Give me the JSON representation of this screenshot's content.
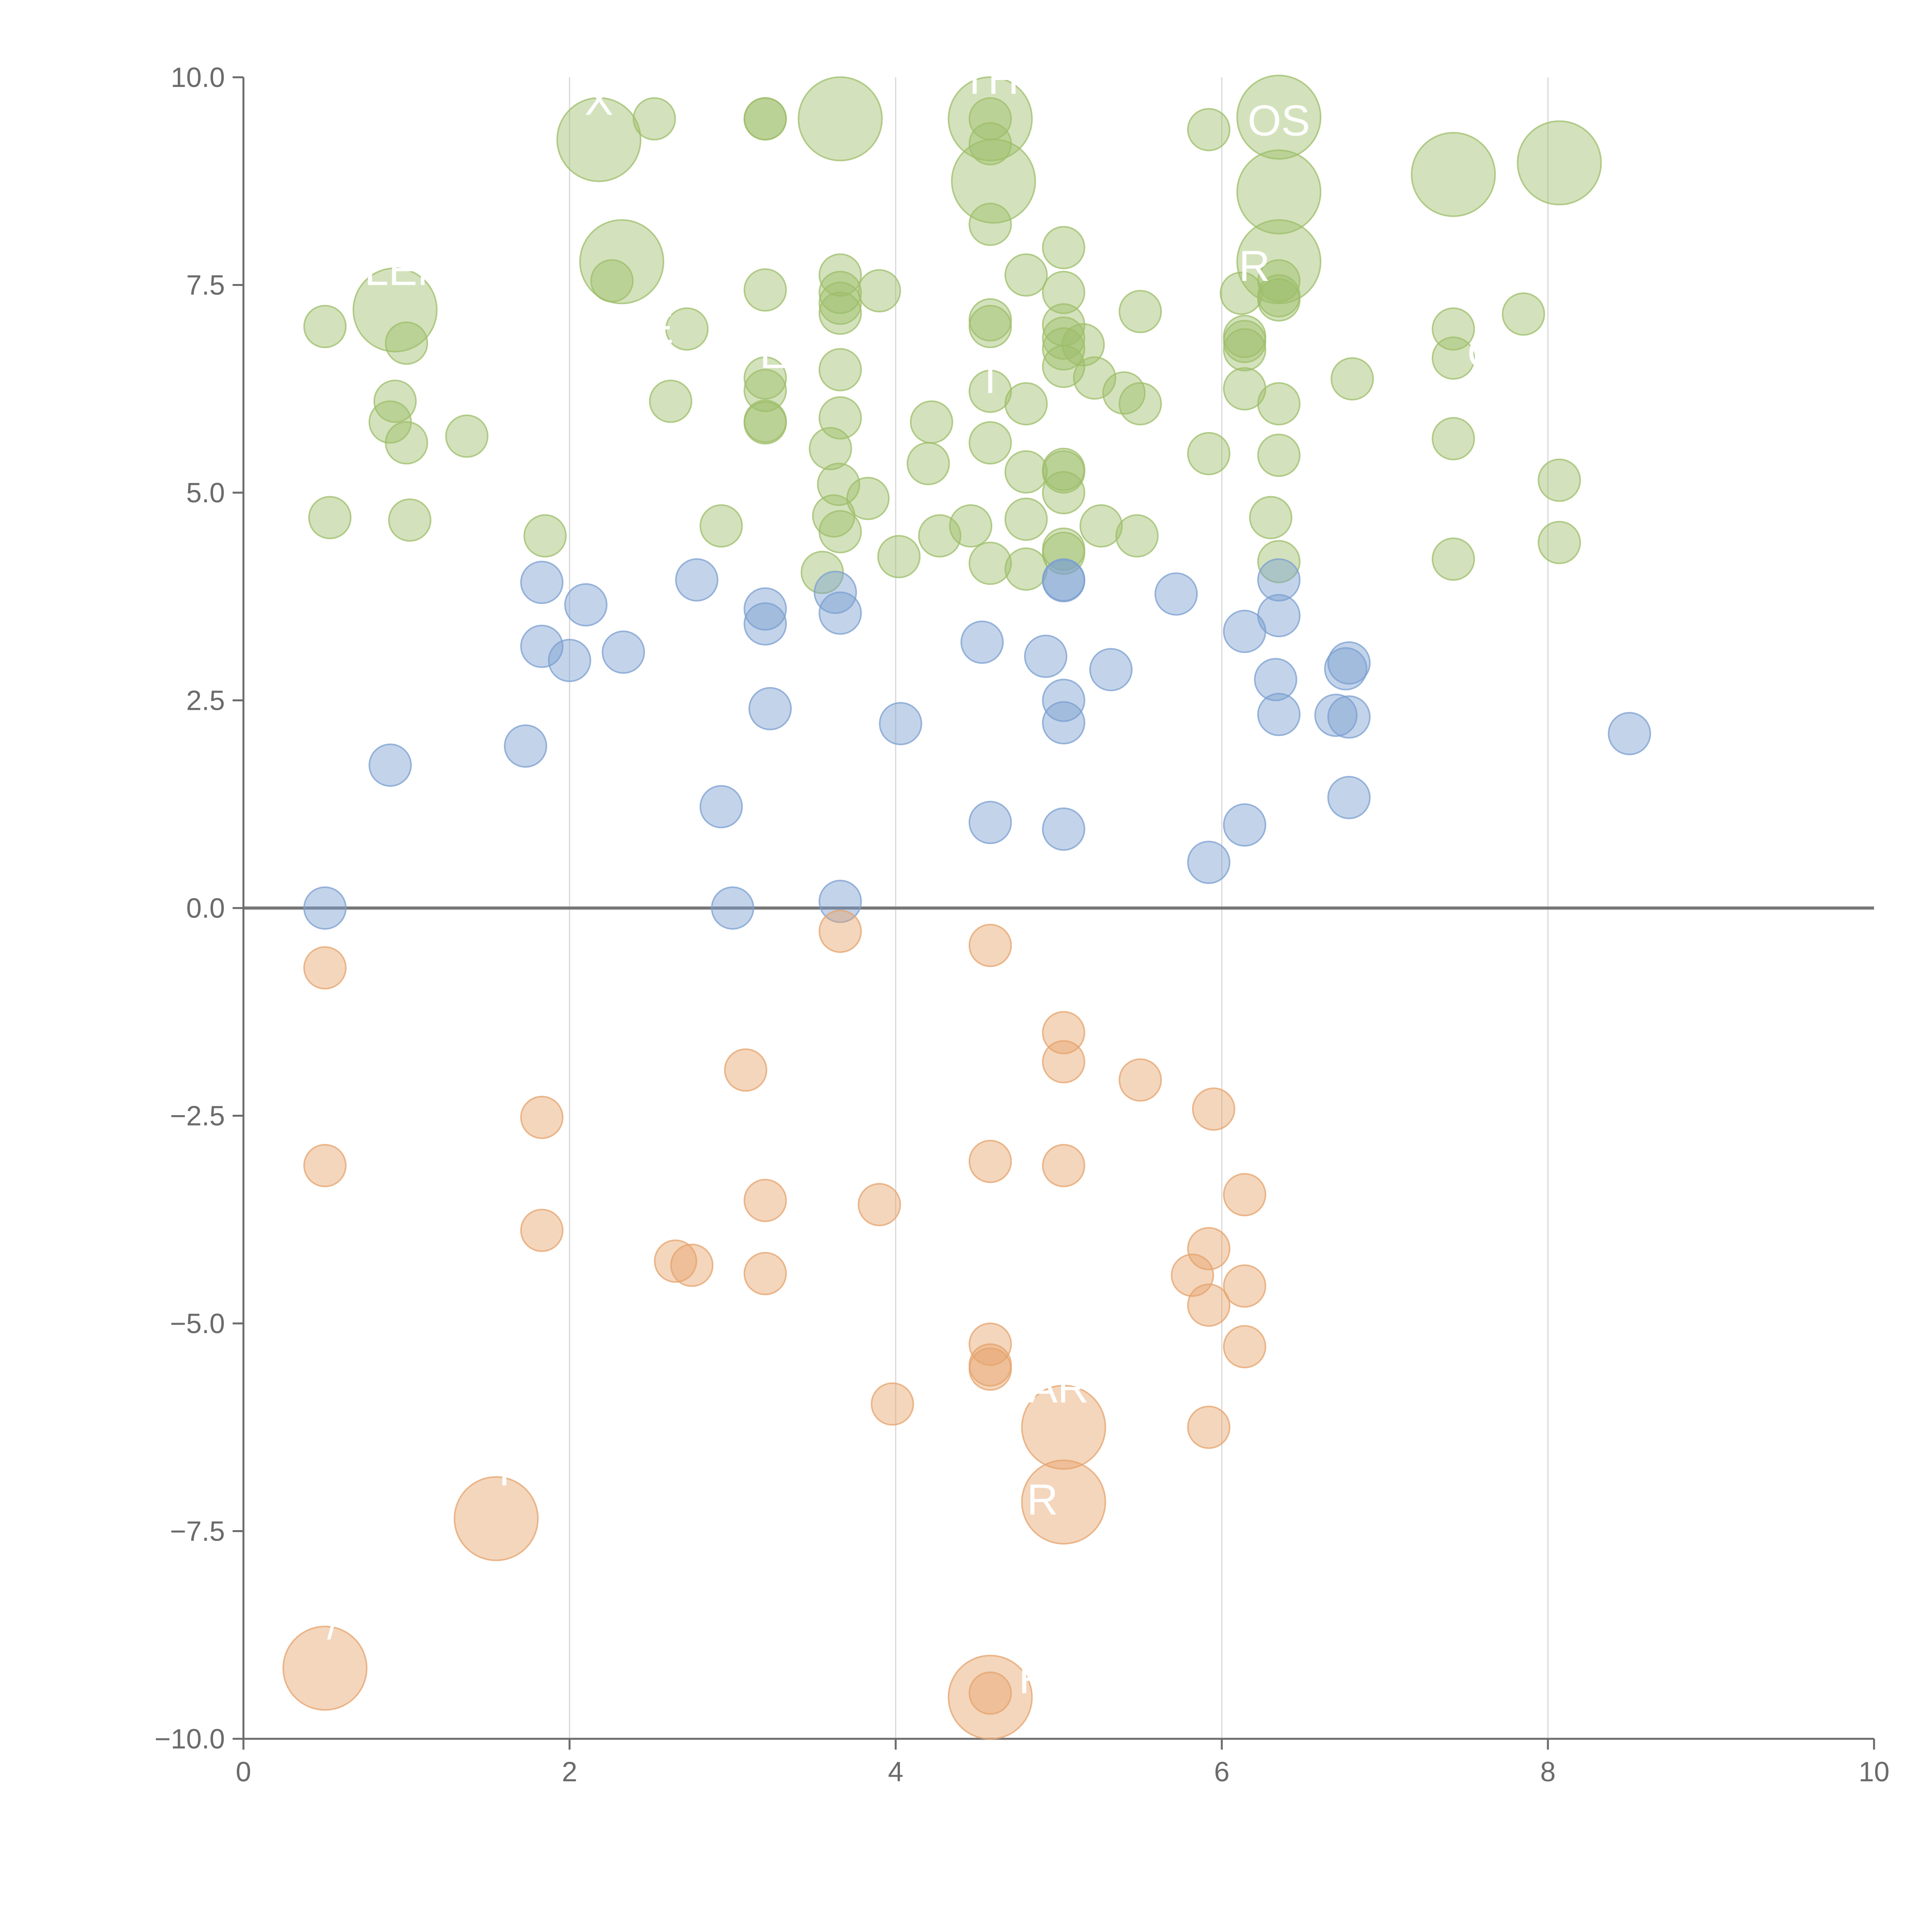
{
  "chart_data": {
    "type": "scatter",
    "title": "",
    "xlabel": "",
    "ylabel": "",
    "xlim": [
      0,
      10
    ],
    "ylim": [
      -10,
      10
    ],
    "grid": "vertical-lines",
    "x_ticks": [
      "0",
      "2",
      "4",
      "6",
      "8",
      "10"
    ],
    "y_ticks": [
      "−10.0",
      "−7.5",
      "−5.0",
      "−2.5",
      "0.0",
      "2.5",
      "5.0",
      "7.5",
      "10.0"
    ],
    "colors": {
      "green": "#9dbe6a",
      "blue": "#7b9fd0",
      "orange": "#e6a36c",
      "axis": "#6b6b6b",
      "grid": "#d7d7d7",
      "zero_line": "#777777"
    },
    "series": [
      {
        "name": "green",
        "color": "#9dbe6a",
        "points": [
          {
            "x": 0.5,
            "y": 7.0,
            "s": 1
          },
          {
            "x": 0.53,
            "y": 4.7,
            "s": 1
          },
          {
            "x": 0.9,
            "y": 5.85,
            "s": 1
          },
          {
            "x": 0.93,
            "y": 6.1,
            "s": 1
          },
          {
            "x": 1.0,
            "y": 5.6,
            "s": 1
          },
          {
            "x": 1.0,
            "y": 6.8,
            "s": 1
          },
          {
            "x": 1.02,
            "y": 4.67,
            "s": 1
          },
          {
            "x": 1.37,
            "y": 5.68,
            "s": 1
          },
          {
            "x": 1.85,
            "y": 4.48,
            "s": 1
          },
          {
            "x": 2.26,
            "y": 7.55,
            "s": 1
          },
          {
            "x": 2.52,
            "y": 9.5,
            "s": 1
          },
          {
            "x": 2.62,
            "y": 6.1,
            "s": 1
          },
          {
            "x": 2.72,
            "y": 6.97,
            "s": 1
          },
          {
            "x": 2.93,
            "y": 4.6,
            "s": 1
          },
          {
            "x": 3.2,
            "y": 9.5,
            "s": 1
          },
          {
            "x": 3.2,
            "y": 9.5,
            "s": 1
          },
          {
            "x": 3.2,
            "y": 7.44,
            "s": 1
          },
          {
            "x": 3.2,
            "y": 6.38,
            "s": 1
          },
          {
            "x": 3.2,
            "y": 6.23,
            "s": 1
          },
          {
            "x": 3.2,
            "y": 5.86,
            "s": 1
          },
          {
            "x": 3.2,
            "y": 5.84,
            "s": 1
          },
          {
            "x": 3.55,
            "y": 4.04,
            "s": 1
          },
          {
            "x": 3.6,
            "y": 5.53,
            "s": 1
          },
          {
            "x": 3.62,
            "y": 4.72,
            "s": 1
          },
          {
            "x": 3.65,
            "y": 5.1,
            "s": 1
          },
          {
            "x": 3.66,
            "y": 7.62,
            "s": 1
          },
          {
            "x": 3.66,
            "y": 7.41,
            "s": 1
          },
          {
            "x": 3.66,
            "y": 7.28,
            "s": 1
          },
          {
            "x": 3.66,
            "y": 7.16,
            "s": 1
          },
          {
            "x": 3.66,
            "y": 6.48,
            "s": 1
          },
          {
            "x": 3.66,
            "y": 5.9,
            "s": 1
          },
          {
            "x": 3.66,
            "y": 4.53,
            "s": 1
          },
          {
            "x": 3.83,
            "y": 4.93,
            "s": 1
          },
          {
            "x": 3.9,
            "y": 7.43,
            "s": 1
          },
          {
            "x": 4.02,
            "y": 4.23,
            "s": 1
          },
          {
            "x": 4.2,
            "y": 5.35,
            "s": 1
          },
          {
            "x": 4.22,
            "y": 5.85,
            "s": 1
          },
          {
            "x": 4.27,
            "y": 4.48,
            "s": 1
          },
          {
            "x": 4.46,
            "y": 4.6,
            "s": 1
          },
          {
            "x": 4.58,
            "y": 9.5,
            "s": 1
          },
          {
            "x": 4.58,
            "y": 9.2,
            "s": 1
          },
          {
            "x": 4.58,
            "y": 8.23,
            "s": 1
          },
          {
            "x": 4.58,
            "y": 7.08,
            "s": 1
          },
          {
            "x": 4.58,
            "y": 7.0,
            "s": 1
          },
          {
            "x": 4.58,
            "y": 6.22,
            "s": 1
          },
          {
            "x": 4.58,
            "y": 5.6,
            "s": 1
          },
          {
            "x": 4.58,
            "y": 4.15,
            "s": 1
          },
          {
            "x": 4.8,
            "y": 7.62,
            "s": 1
          },
          {
            "x": 4.8,
            "y": 6.07,
            "s": 1
          },
          {
            "x": 4.8,
            "y": 5.25,
            "s": 1
          },
          {
            "x": 4.8,
            "y": 4.68,
            "s": 1
          },
          {
            "x": 4.8,
            "y": 4.08,
            "s": 1
          },
          {
            "x": 5.03,
            "y": 7.95,
            "s": 1
          },
          {
            "x": 5.03,
            "y": 7.41,
            "s": 1
          },
          {
            "x": 5.03,
            "y": 7.02,
            "s": 1
          },
          {
            "x": 5.03,
            "y": 6.86,
            "s": 1
          },
          {
            "x": 5.03,
            "y": 6.73,
            "s": 1
          },
          {
            "x": 5.03,
            "y": 6.52,
            "s": 1
          },
          {
            "x": 5.03,
            "y": 5.28,
            "s": 1
          },
          {
            "x": 5.03,
            "y": 5.25,
            "s": 1
          },
          {
            "x": 5.03,
            "y": 5.0,
            "s": 1
          },
          {
            "x": 5.03,
            "y": 4.32,
            "s": 1
          },
          {
            "x": 5.03,
            "y": 4.27,
            "s": 1
          },
          {
            "x": 5.15,
            "y": 6.78,
            "s": 1
          },
          {
            "x": 5.22,
            "y": 6.38,
            "s": 1
          },
          {
            "x": 5.26,
            "y": 4.6,
            "s": 1
          },
          {
            "x": 5.4,
            "y": 6.2,
            "s": 1
          },
          {
            "x": 5.5,
            "y": 7.18,
            "s": 1
          },
          {
            "x": 5.5,
            "y": 6.07,
            "s": 1
          },
          {
            "x": 5.48,
            "y": 4.48,
            "s": 1
          },
          {
            "x": 5.92,
            "y": 9.37,
            "s": 1
          },
          {
            "x": 5.92,
            "y": 5.47,
            "s": 1
          },
          {
            "x": 6.12,
            "y": 7.4,
            "s": 1
          },
          {
            "x": 6.14,
            "y": 6.88,
            "s": 1
          },
          {
            "x": 6.14,
            "y": 6.82,
            "s": 1
          },
          {
            "x": 6.14,
            "y": 6.72,
            "s": 1
          },
          {
            "x": 6.14,
            "y": 6.25,
            "s": 1
          },
          {
            "x": 6.3,
            "y": 4.7,
            "s": 1
          },
          {
            "x": 6.35,
            "y": 7.55,
            "s": 1
          },
          {
            "x": 6.35,
            "y": 7.37,
            "s": 1
          },
          {
            "x": 6.35,
            "y": 7.32,
            "s": 1
          },
          {
            "x": 6.35,
            "y": 6.07,
            "s": 1
          },
          {
            "x": 6.35,
            "y": 5.45,
            "s": 1
          },
          {
            "x": 6.35,
            "y": 4.17,
            "s": 1
          },
          {
            "x": 6.8,
            "y": 6.37,
            "s": 1
          },
          {
            "x": 7.42,
            "y": 6.97,
            "s": 1
          },
          {
            "x": 7.42,
            "y": 6.62,
            "s": 1
          },
          {
            "x": 7.42,
            "y": 5.65,
            "s": 1
          },
          {
            "x": 7.42,
            "y": 4.2,
            "s": 1
          },
          {
            "x": 7.85,
            "y": 7.15,
            "s": 1
          },
          {
            "x": 8.07,
            "y": 5.15,
            "s": 1
          },
          {
            "x": 8.07,
            "y": 4.4,
            "s": 1
          },
          {
            "x": 0.93,
            "y": 7.2,
            "s": 3
          },
          {
            "x": 2.18,
            "y": 9.25,
            "s": 3
          },
          {
            "x": 2.32,
            "y": 7.78,
            "s": 3
          },
          {
            "x": 3.66,
            "y": 9.5,
            "s": 3
          },
          {
            "x": 4.58,
            "y": 9.5,
            "s": 3
          },
          {
            "x": 4.6,
            "y": 8.75,
            "s": 3
          },
          {
            "x": 6.35,
            "y": 9.52,
            "s": 3
          },
          {
            "x": 6.35,
            "y": 8.62,
            "s": 3
          },
          {
            "x": 6.35,
            "y": 7.78,
            "s": 3
          },
          {
            "x": 7.42,
            "y": 8.83,
            "s": 3
          },
          {
            "x": 8.07,
            "y": 8.97,
            "s": 3
          }
        ]
      },
      {
        "name": "blue",
        "color": "#7b9fd0",
        "points": [
          {
            "x": 0.5,
            "y": 0.0,
            "s": 1
          },
          {
            "x": 0.9,
            "y": 1.72,
            "s": 1
          },
          {
            "x": 1.73,
            "y": 1.95,
            "s": 1
          },
          {
            "x": 1.83,
            "y": 3.92,
            "s": 1
          },
          {
            "x": 1.83,
            "y": 3.15,
            "s": 1
          },
          {
            "x": 2.0,
            "y": 2.98,
            "s": 1
          },
          {
            "x": 2.1,
            "y": 3.65,
            "s": 1
          },
          {
            "x": 2.33,
            "y": 3.08,
            "s": 1
          },
          {
            "x": 2.78,
            "y": 3.95,
            "s": 1
          },
          {
            "x": 2.93,
            "y": 1.22,
            "s": 1
          },
          {
            "x": 3.0,
            "y": 0.0,
            "s": 1
          },
          {
            "x": 3.2,
            "y": 3.6,
            "s": 1
          },
          {
            "x": 3.2,
            "y": 3.42,
            "s": 1
          },
          {
            "x": 3.23,
            "y": 2.4,
            "s": 1
          },
          {
            "x": 3.63,
            "y": 3.8,
            "s": 1
          },
          {
            "x": 3.66,
            "y": 3.55,
            "s": 1
          },
          {
            "x": 3.66,
            "y": 0.08,
            "s": 1
          },
          {
            "x": 4.03,
            "y": 2.22,
            "s": 1
          },
          {
            "x": 4.53,
            "y": 3.2,
            "s": 1
          },
          {
            "x": 4.58,
            "y": 1.03,
            "s": 1
          },
          {
            "x": 4.92,
            "y": 3.03,
            "s": 1
          },
          {
            "x": 5.03,
            "y": 3.95,
            "s": 1
          },
          {
            "x": 5.03,
            "y": 3.94,
            "s": 1
          },
          {
            "x": 5.03,
            "y": 2.5,
            "s": 1
          },
          {
            "x": 5.03,
            "y": 2.23,
            "s": 1
          },
          {
            "x": 5.03,
            "y": 0.95,
            "s": 1
          },
          {
            "x": 5.32,
            "y": 2.87,
            "s": 1
          },
          {
            "x": 5.72,
            "y": 3.78,
            "s": 1
          },
          {
            "x": 5.92,
            "y": 0.55,
            "s": 1
          },
          {
            "x": 6.14,
            "y": 3.33,
            "s": 1
          },
          {
            "x": 6.14,
            "y": 1.0,
            "s": 1
          },
          {
            "x": 6.33,
            "y": 2.75,
            "s": 1
          },
          {
            "x": 6.35,
            "y": 3.95,
            "s": 1
          },
          {
            "x": 6.35,
            "y": 3.52,
            "s": 1
          },
          {
            "x": 6.35,
            "y": 2.33,
            "s": 1
          },
          {
            "x": 6.7,
            "y": 2.32,
            "s": 1
          },
          {
            "x": 6.78,
            "y": 2.95,
            "s": 1
          },
          {
            "x": 6.76,
            "y": 2.88,
            "s": 1
          },
          {
            "x": 6.78,
            "y": 2.3,
            "s": 1
          },
          {
            "x": 6.78,
            "y": 1.33,
            "s": 1
          },
          {
            "x": 8.5,
            "y": 2.1,
            "s": 1
          }
        ]
      },
      {
        "name": "orange",
        "color": "#e6a36c",
        "points": [
          {
            "x": 0.5,
            "y": -0.72,
            "s": 1
          },
          {
            "x": 0.5,
            "y": -3.1,
            "s": 1
          },
          {
            "x": 1.83,
            "y": -2.52,
            "s": 1
          },
          {
            "x": 1.83,
            "y": -3.88,
            "s": 1
          },
          {
            "x": 2.65,
            "y": -4.25,
            "s": 1
          },
          {
            "x": 2.75,
            "y": -4.3,
            "s": 1
          },
          {
            "x": 3.08,
            "y": -1.95,
            "s": 1
          },
          {
            "x": 3.2,
            "y": -3.52,
            "s": 1
          },
          {
            "x": 3.2,
            "y": -4.4,
            "s": 1
          },
          {
            "x": 3.66,
            "y": -0.28,
            "s": 1
          },
          {
            "x": 3.9,
            "y": -3.57,
            "s": 1
          },
          {
            "x": 3.98,
            "y": -5.97,
            "s": 1
          },
          {
            "x": 4.58,
            "y": -0.45,
            "s": 1
          },
          {
            "x": 4.58,
            "y": -3.05,
            "s": 1
          },
          {
            "x": 4.58,
            "y": -5.25,
            "s": 1
          },
          {
            "x": 4.58,
            "y": -5.5,
            "s": 1
          },
          {
            "x": 4.58,
            "y": -5.55,
            "s": 1
          },
          {
            "x": 4.58,
            "y": -9.45,
            "s": 1
          },
          {
            "x": 5.03,
            "y": -1.5,
            "s": 1
          },
          {
            "x": 5.03,
            "y": -1.85,
            "s": 1
          },
          {
            "x": 5.03,
            "y": -3.1,
            "s": 1
          },
          {
            "x": 5.5,
            "y": -2.07,
            "s": 1
          },
          {
            "x": 5.82,
            "y": -4.42,
            "s": 1
          },
          {
            "x": 5.92,
            "y": -4.1,
            "s": 1
          },
          {
            "x": 5.92,
            "y": -4.78,
            "s": 1
          },
          {
            "x": 5.92,
            "y": -6.25,
            "s": 1
          },
          {
            "x": 5.95,
            "y": -2.42,
            "s": 1
          },
          {
            "x": 6.14,
            "y": -3.45,
            "s": 1
          },
          {
            "x": 6.14,
            "y": -4.55,
            "s": 1
          },
          {
            "x": 6.14,
            "y": -5.28,
            "s": 1
          },
          {
            "x": 0.5,
            "y": -9.15,
            "s": 3
          },
          {
            "x": 1.55,
            "y": -7.35,
            "s": 3
          },
          {
            "x": 4.58,
            "y": -9.5,
            "s": 3
          },
          {
            "x": 5.03,
            "y": -6.25,
            "s": 3
          },
          {
            "x": 5.03,
            "y": -7.15,
            "s": 3
          }
        ]
      }
    ],
    "annotations": [
      {
        "text": "LEN",
        "x": 1.0,
        "y": 7.5
      },
      {
        "text": "X",
        "x": 2.18,
        "y": 9.55
      },
      {
        "text": "E",
        "x": 2.55,
        "y": 6.8
      },
      {
        "text": "ER",
        "x": 3.35,
        "y": 6.5
      },
      {
        "text": "TH",
        "x": 4.58,
        "y": 9.8
      },
      {
        "text": "I",
        "x": 4.58,
        "y": 6.2
      },
      {
        "text": "OS",
        "x": 6.35,
        "y": 9.3
      },
      {
        "text": "R",
        "x": 6.2,
        "y": 7.55
      },
      {
        "text": "C",
        "x": 7.6,
        "y": 6.5
      },
      {
        "text": "AR",
        "x": 5.0,
        "y": -5.95
      },
      {
        "text": "R",
        "x": 4.9,
        "y": -7.3
      },
      {
        "text": "R",
        "x": 4.85,
        "y": -9.45
      },
      {
        "text": "T",
        "x": 1.6,
        "y": -6.95
      },
      {
        "text": "/",
        "x": 0.55,
        "y": -8.8
      }
    ]
  }
}
